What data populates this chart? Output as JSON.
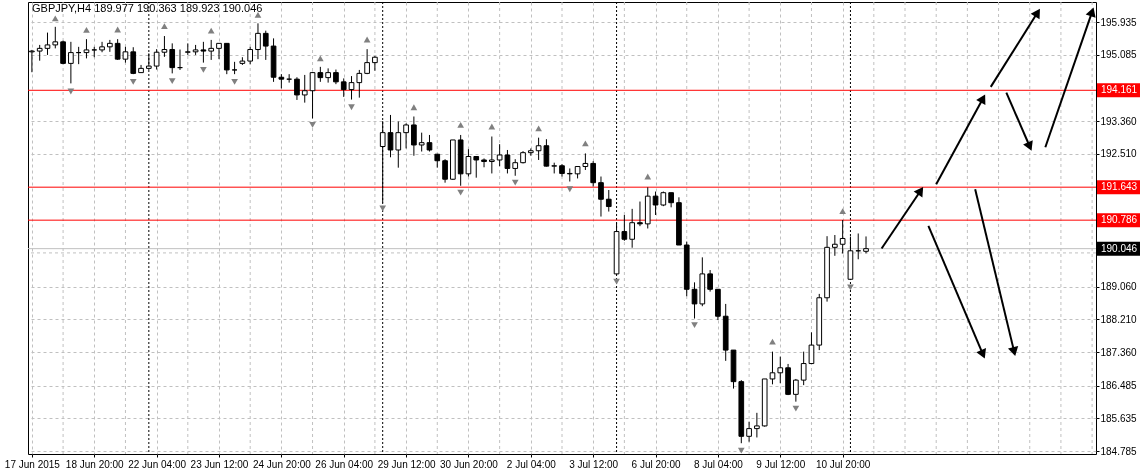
{
  "chart_data": {
    "type": "candlestick",
    "title": "GBPJPY,H4  189.977 190.363 189.923 190.046",
    "color": "#000000",
    "categories": [
      "17 Jun 2015",
      null,
      null,
      null,
      null,
      null,
      null,
      null,
      "18 Jun 20:00",
      null,
      null,
      null,
      null,
      null,
      null,
      null,
      "22 Jun 04:00",
      null,
      null,
      null,
      null,
      null,
      null,
      null,
      "23 Jun 12:00",
      null,
      null,
      null,
      null,
      null,
      null,
      null,
      "24 Jun 20:00",
      null,
      null,
      null,
      null,
      null,
      null,
      null,
      "26 Jun 04:00",
      null,
      null,
      null,
      null,
      null,
      null,
      null,
      "29 Jun 12:00",
      null,
      null,
      null,
      null,
      null,
      null,
      null,
      "30 Jun 20:00",
      null,
      null,
      null,
      null,
      null,
      null,
      null,
      "2 Jul 04:00",
      null,
      null,
      null,
      null,
      null,
      null,
      null,
      "3 Jul 12:00",
      null,
      null,
      null,
      null,
      null,
      null,
      null,
      "6 Jul 20:00",
      null,
      null,
      null,
      null,
      null,
      null,
      null,
      "8 Jul 04:00",
      null,
      null,
      null,
      null,
      null,
      null,
      null,
      "9 Jul 12:00",
      null,
      null,
      null,
      null,
      null,
      null,
      null,
      "10 Jul 20:00",
      null,
      null,
      null,
      null,
      null,
      null,
      null,
      null,
      null,
      null,
      null,
      null,
      null,
      null,
      null,
      null,
      null,
      null,
      null,
      null,
      null,
      null,
      null,
      null,
      null,
      null,
      null,
      null,
      null,
      null,
      null,
      null
    ],
    "ohlc": [
      [
        195.16,
        195.21,
        194.63,
        195.18
      ],
      [
        195.18,
        195.34,
        194.93,
        195.25
      ],
      [
        195.25,
        195.66,
        195.08,
        195.34
      ],
      [
        195.34,
        195.81,
        195.25,
        195.42
      ],
      [
        195.42,
        195.45,
        194.84,
        194.86
      ],
      [
        194.86,
        195.42,
        194.34,
        195.14
      ],
      [
        195.14,
        195.29,
        194.84,
        195.14
      ],
      [
        195.14,
        195.49,
        194.99,
        195.21
      ],
      [
        195.21,
        195.29,
        195.02,
        195.21
      ],
      [
        195.21,
        195.42,
        195.15,
        195.29
      ],
      [
        195.29,
        195.47,
        195.16,
        195.38
      ],
      [
        195.38,
        195.49,
        194.95,
        194.97
      ],
      [
        194.97,
        195.29,
        194.88,
        195.16
      ],
      [
        195.16,
        195.28,
        194.58,
        194.6
      ],
      [
        194.62,
        194.82,
        194.62,
        194.73
      ],
      [
        194.73,
        195.12,
        194.69,
        194.79
      ],
      [
        194.79,
        195.23,
        194.7,
        195.15
      ],
      [
        195.15,
        195.57,
        195.03,
        195.22
      ],
      [
        195.22,
        195.38,
        194.6,
        194.75
      ],
      [
        194.75,
        195.22,
        194.69,
        194.75
      ],
      [
        195.15,
        195.38,
        195.08,
        195.16
      ],
      [
        195.16,
        195.34,
        195.08,
        195.21
      ],
      [
        195.21,
        195.42,
        194.88,
        195.18
      ],
      [
        195.18,
        195.47,
        194.95,
        195.25
      ],
      [
        195.25,
        195.38,
        194.97,
        195.38
      ],
      [
        195.38,
        195.38,
        194.58,
        194.69
      ],
      [
        194.69,
        194.9,
        194.58,
        194.69
      ],
      [
        194.86,
        195.02,
        194.82,
        194.92
      ],
      [
        194.92,
        195.29,
        194.84,
        195.22
      ],
      [
        195.22,
        195.9,
        194.97,
        195.64
      ],
      [
        195.64,
        195.71,
        194.95,
        195.31
      ],
      [
        195.31,
        195.51,
        194.38,
        194.5
      ],
      [
        194.5,
        194.58,
        194.21,
        194.45
      ],
      [
        194.45,
        194.58,
        194.36,
        194.45
      ],
      [
        194.45,
        194.5,
        193.91,
        194.04
      ],
      [
        194.04,
        194.56,
        193.84,
        194.15
      ],
      [
        194.15,
        194.64,
        193.43,
        194.62
      ],
      [
        194.62,
        194.77,
        194.38,
        194.49
      ],
      [
        194.49,
        194.73,
        194.36,
        194.62
      ],
      [
        194.62,
        194.7,
        194.32,
        194.38
      ],
      [
        194.38,
        194.47,
        193.99,
        194.18
      ],
      [
        194.18,
        194.53,
        193.92,
        194.36
      ],
      [
        194.36,
        194.69,
        193.97,
        194.6
      ],
      [
        194.6,
        195.23,
        194.58,
        194.88
      ],
      [
        194.88,
        195.05,
        194.67,
        195.02
      ],
      [
        192.7,
        193.36,
        191.24,
        193.06
      ],
      [
        193.06,
        193.52,
        192.42,
        192.61
      ],
      [
        192.61,
        193.35,
        192.15,
        193.06
      ],
      [
        193.06,
        193.3,
        192.65,
        193.26
      ],
      [
        193.26,
        193.48,
        192.46,
        192.74
      ],
      [
        192.74,
        193.06,
        192.57,
        192.8
      ],
      [
        192.8,
        193.0,
        192.57,
        192.61
      ],
      [
        192.5,
        192.51,
        192.15,
        192.33
      ],
      [
        192.33,
        192.37,
        191.76,
        191.85
      ],
      [
        191.85,
        192.87,
        191.83,
        192.87
      ],
      [
        192.87,
        193.0,
        191.68,
        191.99
      ],
      [
        191.99,
        192.63,
        191.92,
        192.44
      ],
      [
        192.44,
        192.45,
        191.89,
        192.35
      ],
      [
        192.35,
        192.39,
        192.16,
        192.31
      ],
      [
        192.31,
        192.96,
        192.0,
        192.35
      ],
      [
        192.35,
        192.76,
        192.19,
        192.48
      ],
      [
        192.48,
        192.61,
        192.0,
        192.13
      ],
      [
        192.13,
        192.37,
        191.94,
        192.28
      ],
      [
        192.28,
        192.58,
        192.26,
        192.54
      ],
      [
        192.54,
        192.65,
        192.46,
        192.59
      ],
      [
        192.59,
        192.93,
        192.35,
        192.72
      ],
      [
        192.72,
        192.89,
        192.18,
        192.19
      ],
      [
        192.19,
        192.28,
        192.0,
        192.2
      ],
      [
        192.2,
        192.24,
        191.92,
        192.0
      ],
      [
        192.0,
        192.13,
        191.79,
        191.99
      ],
      [
        191.99,
        192.19,
        191.87,
        192.18
      ],
      [
        192.18,
        192.52,
        192.09,
        192.26
      ],
      [
        192.26,
        192.32,
        191.66,
        191.76
      ],
      [
        191.76,
        191.92,
        190.88,
        191.33
      ],
      [
        191.33,
        191.57,
        191.01,
        191.14
      ],
      [
        189.39,
        190.72,
        189.36,
        190.49
      ],
      [
        190.49,
        190.92,
        190.25,
        190.29
      ],
      [
        190.29,
        191.08,
        190.07,
        190.72
      ],
      [
        190.72,
        191.27,
        190.63,
        190.69
      ],
      [
        190.69,
        191.64,
        190.57,
        191.41
      ],
      [
        191.41,
        191.53,
        190.92,
        191.18
      ],
      [
        191.18,
        191.53,
        191.15,
        191.5
      ],
      [
        191.5,
        191.5,
        191.12,
        191.24
      ],
      [
        191.24,
        191.38,
        190.14,
        190.14
      ],
      [
        190.14,
        190.23,
        188.81,
        188.99
      ],
      [
        188.99,
        189.17,
        188.23,
        188.61
      ],
      [
        188.61,
        189.82,
        188.55,
        189.39
      ],
      [
        189.39,
        189.49,
        188.93,
        188.99
      ],
      [
        188.99,
        188.99,
        188.19,
        188.29
      ],
      [
        188.29,
        188.61,
        187.13,
        187.41
      ],
      [
        187.41,
        187.41,
        186.41,
        186.59
      ],
      [
        186.59,
        186.63,
        184.99,
        185.17
      ],
      [
        185.17,
        185.55,
        185.03,
        185.37
      ],
      [
        185.37,
        185.78,
        185.14,
        185.44
      ],
      [
        185.44,
        186.66,
        185.42,
        186.66
      ],
      [
        186.66,
        187.37,
        186.52,
        186.82
      ],
      [
        186.82,
        187.24,
        186.55,
        186.95
      ],
      [
        186.95,
        187.05,
        186.24,
        186.26
      ],
      [
        186.26,
        186.66,
        186.07,
        186.63
      ],
      [
        186.63,
        187.37,
        186.5,
        187.06
      ],
      [
        187.06,
        187.87,
        187.05,
        187.54
      ],
      [
        187.54,
        188.87,
        187.41,
        188.77
      ],
      [
        188.77,
        190.37,
        188.67,
        190.08
      ],
      [
        190.08,
        190.4,
        189.86,
        190.16
      ],
      [
        190.16,
        190.79,
        189.92,
        190.31
      ],
      [
        189.25,
        190.36,
        189.23,
        189.99
      ],
      [
        189.99,
        190.44,
        189.77,
        189.99
      ],
      [
        189.977,
        190.363,
        189.923,
        190.046
      ],
      null,
      null,
      null,
      null,
      null,
      null,
      null,
      null,
      null,
      null,
      null,
      null,
      null,
      null,
      null,
      null,
      null,
      null,
      null,
      null,
      null,
      null,
      null,
      null,
      null,
      null,
      null,
      null,
      null
    ],
    "series": [
      {
        "type": "scatter",
        "color": "#808080",
        "marker": "triangle",
        "values": [
          null,
          null,
          null,
          196.03,
          null,
          null,
          null,
          195.73,
          null,
          null,
          null,
          195.74,
          null,
          null,
          null,
          null,
          null,
          195.83,
          null,
          null,
          null,
          null,
          null,
          195.71,
          null,
          null,
          null,
          null,
          null,
          196.12,
          null,
          null,
          null,
          null,
          null,
          null,
          null,
          194.99,
          null,
          null,
          null,
          null,
          null,
          195.48,
          null,
          null,
          null,
          null,
          null,
          193.72,
          null,
          null,
          null,
          null,
          null,
          193.26,
          null,
          null,
          null,
          193.22,
          null,
          null,
          null,
          null,
          null,
          193.17,
          null,
          null,
          null,
          null,
          null,
          192.78,
          null,
          null,
          null,
          null,
          null,
          null,
          null,
          191.92,
          null,
          null,
          null,
          null,
          null,
          null,
          null,
          null,
          null,
          null,
          null,
          null,
          null,
          null,
          null,
          187.63,
          null,
          null,
          null,
          null,
          null,
          null,
          null,
          null,
          191.02,
          null,
          null,
          null,
          null,
          null,
          null,
          null,
          null,
          null,
          null,
          null,
          null,
          null,
          null,
          null,
          null,
          null,
          null,
          null,
          null,
          null,
          null,
          null,
          null,
          null,
          null,
          null,
          null,
          null,
          null,
          null,
          null
        ]
      },
      {
        "type": "scatter",
        "color": "#808080",
        "marker": "triangle",
        "values": [
          null,
          null,
          null,
          null,
          null,
          194.13,
          null,
          null,
          null,
          null,
          null,
          null,
          null,
          194.38,
          null,
          null,
          null,
          null,
          194.4,
          null,
          null,
          null,
          194.69,
          null,
          null,
          null,
          194.38,
          null,
          null,
          null,
          null,
          null,
          null,
          null,
          null,
          null,
          193.26,
          null,
          null,
          null,
          null,
          193.72,
          null,
          null,
          null,
          191.09,
          null,
          null,
          null,
          null,
          null,
          null,
          null,
          null,
          null,
          191.5,
          null,
          null,
          null,
          null,
          null,
          null,
          191.76,
          null,
          null,
          null,
          null,
          null,
          null,
          191.59,
          null,
          null,
          null,
          null,
          null,
          189.19,
          null,
          null,
          null,
          null,
          null,
          null,
          null,
          null,
          null,
          188.06,
          null,
          null,
          null,
          null,
          null,
          184.8,
          null,
          null,
          null,
          null,
          null,
          null,
          185.89,
          null,
          null,
          null,
          null,
          null,
          null,
          189.04,
          null,
          null,
          null,
          null,
          null,
          null,
          null,
          null,
          null,
          null,
          null,
          null,
          null,
          null,
          null,
          null,
          null,
          null,
          null,
          null,
          null,
          null,
          null,
          null,
          null,
          null,
          null,
          null,
          null,
          null,
          null
        ]
      },
      {
        "type": "line",
        "color": "#000000",
        "values": [
          null,
          null,
          null,
          null,
          null,
          null,
          null,
          null,
          null,
          null,
          null,
          null,
          null,
          null,
          null,
          null,
          null,
          null,
          null,
          null,
          null,
          null,
          null,
          null,
          null,
          null,
          null,
          null,
          null,
          null,
          null,
          null,
          null,
          null,
          null,
          null,
          null,
          null,
          null,
          null,
          null,
          null,
          null,
          null,
          null,
          null,
          null,
          null,
          null,
          null,
          null,
          null,
          null,
          null,
          null,
          null,
          null,
          null,
          null,
          null,
          null,
          null,
          null,
          null,
          null,
          null,
          null,
          null,
          null,
          null,
          null,
          null,
          null,
          null,
          null,
          null,
          null,
          null,
          null,
          null,
          null,
          null,
          null,
          null,
          null,
          null,
          null,
          null,
          null,
          null,
          null,
          null,
          null,
          null,
          null,
          null,
          null,
          null,
          null,
          null,
          null,
          null,
          null,
          null,
          null,
          null,
          null,
          null,
          null,
          190.05,
          null,
          null,
          null,
          null,
          191.55,
          null,
          null,
          null,
          null,
          null,
          null,
          null,
          null,
          null,
          null,
          null,
          null,
          null,
          null,
          null,
          null,
          null,
          null,
          null,
          null,
          null,
          null
        ]
      },
      {
        "type": "line",
        "color": "#000000",
        "values": [
          null,
          null,
          null,
          null,
          null,
          null,
          null,
          null,
          null,
          null,
          null,
          null,
          null,
          null,
          null,
          null,
          null,
          null,
          null,
          null,
          null,
          null,
          null,
          null,
          null,
          null,
          null,
          null,
          null,
          null,
          null,
          null,
          null,
          null,
          null,
          null,
          null,
          null,
          null,
          null,
          null,
          null,
          null,
          null,
          null,
          null,
          null,
          null,
          null,
          null,
          null,
          null,
          null,
          null,
          null,
          null,
          null,
          null,
          null,
          null,
          null,
          null,
          null,
          null,
          null,
          null,
          null,
          null,
          null,
          null,
          null,
          null,
          null,
          null,
          null,
          null,
          null,
          null,
          null,
          null,
          null,
          null,
          null,
          null,
          null,
          null,
          null,
          null,
          null,
          null,
          null,
          null,
          null,
          null,
          null,
          null,
          null,
          null,
          null,
          null,
          null,
          null,
          null,
          null,
          null,
          null,
          null,
          null,
          null,
          null,
          null,
          null,
          null,
          null,
          null,
          null,
          191.72,
          null,
          null,
          null,
          null,
          null,
          193.95,
          null,
          null,
          null,
          null,
          null,
          null,
          null,
          null,
          null,
          null,
          null,
          null,
          null,
          null
        ]
      },
      {
        "type": "line",
        "color": "#000000",
        "values": [
          null,
          null,
          null,
          null,
          null,
          null,
          null,
          null,
          null,
          null,
          null,
          null,
          null,
          null,
          null,
          null,
          null,
          null,
          null,
          null,
          null,
          null,
          null,
          null,
          null,
          null,
          null,
          null,
          null,
          null,
          null,
          null,
          null,
          null,
          null,
          null,
          null,
          null,
          null,
          null,
          null,
          null,
          null,
          null,
          null,
          null,
          null,
          null,
          null,
          null,
          null,
          null,
          null,
          null,
          null,
          null,
          null,
          null,
          null,
          null,
          null,
          null,
          null,
          null,
          null,
          null,
          null,
          null,
          null,
          null,
          null,
          null,
          null,
          null,
          null,
          null,
          null,
          null,
          null,
          null,
          null,
          null,
          null,
          null,
          null,
          null,
          null,
          null,
          null,
          null,
          null,
          null,
          null,
          null,
          null,
          null,
          null,
          null,
          null,
          null,
          null,
          null,
          null,
          null,
          null,
          null,
          null,
          null,
          null,
          null,
          null,
          null,
          null,
          null,
          null,
          null,
          null,
          null,
          null,
          null,
          null,
          null,
          null,
          194.25,
          null,
          null,
          null,
          null,
          null,
          196.18,
          null,
          null,
          null,
          null,
          null,
          null,
          null
        ]
      },
      {
        "type": "line",
        "color": "#000000",
        "values": [
          null,
          null,
          null,
          null,
          null,
          null,
          null,
          null,
          null,
          null,
          null,
          null,
          null,
          null,
          null,
          null,
          null,
          null,
          null,
          null,
          null,
          null,
          null,
          null,
          null,
          null,
          null,
          null,
          null,
          null,
          null,
          null,
          null,
          null,
          null,
          null,
          null,
          null,
          null,
          null,
          null,
          null,
          null,
          null,
          null,
          null,
          null,
          null,
          null,
          null,
          null,
          null,
          null,
          null,
          null,
          null,
          null,
          null,
          null,
          null,
          null,
          null,
          null,
          null,
          null,
          null,
          null,
          null,
          null,
          null,
          null,
          null,
          null,
          null,
          null,
          null,
          null,
          null,
          null,
          null,
          null,
          null,
          null,
          null,
          null,
          null,
          null,
          null,
          null,
          null,
          null,
          null,
          null,
          null,
          null,
          null,
          null,
          null,
          null,
          null,
          null,
          null,
          null,
          null,
          null,
          null,
          null,
          null,
          null,
          null,
          null,
          null,
          null,
          null,
          null,
          null,
          null,
          null,
          null,
          null,
          null,
          null,
          null,
          null,
          null,
          194.1,
          null,
          null,
          192.7,
          null,
          null,
          null,
          null,
          null,
          null,
          null,
          null
        ]
      },
      {
        "type": "line",
        "color": "#000000",
        "values": [
          null,
          null,
          null,
          null,
          null,
          null,
          null,
          null,
          null,
          null,
          null,
          null,
          null,
          null,
          null,
          null,
          null,
          null,
          null,
          null,
          null,
          null,
          null,
          null,
          null,
          null,
          null,
          null,
          null,
          null,
          null,
          null,
          null,
          null,
          null,
          null,
          null,
          null,
          null,
          null,
          null,
          null,
          null,
          null,
          null,
          null,
          null,
          null,
          null,
          null,
          null,
          null,
          null,
          null,
          null,
          null,
          null,
          null,
          null,
          null,
          null,
          null,
          null,
          null,
          null,
          null,
          null,
          null,
          null,
          null,
          null,
          null,
          null,
          null,
          null,
          null,
          null,
          null,
          null,
          null,
          null,
          null,
          null,
          null,
          null,
          null,
          null,
          null,
          null,
          null,
          null,
          null,
          null,
          null,
          null,
          null,
          null,
          null,
          null,
          null,
          null,
          null,
          null,
          null,
          null,
          null,
          null,
          null,
          null,
          null,
          null,
          null,
          null,
          null,
          null,
          null,
          null,
          null,
          null,
          null,
          null,
          null,
          null,
          null,
          null,
          null,
          null,
          null,
          null,
          null,
          192.68,
          null,
          null,
          null,
          null,
          null,
          196.2
        ]
      },
      {
        "type": "line",
        "color": "#000000",
        "values": [
          null,
          null,
          null,
          null,
          null,
          null,
          null,
          null,
          null,
          null,
          null,
          null,
          null,
          null,
          null,
          null,
          null,
          null,
          null,
          null,
          null,
          null,
          null,
          null,
          null,
          null,
          null,
          null,
          null,
          null,
          null,
          null,
          null,
          null,
          null,
          null,
          null,
          null,
          null,
          null,
          null,
          null,
          null,
          null,
          null,
          null,
          null,
          null,
          null,
          null,
          null,
          null,
          null,
          null,
          null,
          null,
          null,
          null,
          null,
          null,
          null,
          null,
          null,
          null,
          null,
          null,
          null,
          null,
          null,
          null,
          null,
          null,
          null,
          null,
          null,
          null,
          null,
          null,
          null,
          null,
          null,
          null,
          null,
          null,
          null,
          null,
          null,
          null,
          null,
          null,
          null,
          null,
          null,
          null,
          null,
          null,
          null,
          null,
          null,
          null,
          null,
          null,
          null,
          null,
          null,
          null,
          null,
          null,
          null,
          null,
          null,
          null,
          null,
          null,
          null,
          190.64,
          null,
          null,
          null,
          null,
          null,
          null,
          187.3,
          null,
          null,
          null,
          null,
          null,
          null,
          null,
          null,
          null,
          null,
          null,
          null,
          null,
          null
        ]
      },
      {
        "type": "line",
        "color": "#000000",
        "values": [
          null,
          null,
          null,
          null,
          null,
          null,
          null,
          null,
          null,
          null,
          null,
          null,
          null,
          null,
          null,
          null,
          null,
          null,
          null,
          null,
          null,
          null,
          null,
          null,
          null,
          null,
          null,
          null,
          null,
          null,
          null,
          null,
          null,
          null,
          null,
          null,
          null,
          null,
          null,
          null,
          null,
          null,
          null,
          null,
          null,
          null,
          null,
          null,
          null,
          null,
          null,
          null,
          null,
          null,
          null,
          null,
          null,
          null,
          null,
          null,
          null,
          null,
          null,
          null,
          null,
          null,
          null,
          null,
          null,
          null,
          null,
          null,
          null,
          null,
          null,
          null,
          null,
          null,
          null,
          null,
          null,
          null,
          null,
          null,
          null,
          null,
          null,
          null,
          null,
          null,
          null,
          null,
          null,
          null,
          null,
          null,
          null,
          null,
          null,
          null,
          null,
          null,
          null,
          null,
          null,
          null,
          null,
          null,
          null,
          null,
          null,
          null,
          null,
          null,
          null,
          null,
          null,
          null,
          null,
          null,
          null,
          191.59,
          null,
          null,
          null,
          null,
          187.37,
          null,
          null,
          null,
          null,
          null,
          null,
          null,
          null,
          null,
          null
        ]
      }
    ],
    "ylim": [
      184.71,
      196.455
    ],
    "yticks": [
      195.935,
      195.085,
      {
        "value": 193.36,
        "label": "193.360"
      },
      {
        "value": 192.51,
        "label": "192.510"
      },
      {
        "value": 189.935,
        "label": null
      },
      {
        "value": 189.06,
        "label": "189.060"
      },
      {
        "value": 188.21,
        "label": "188.210"
      },
      {
        "value": 187.36,
        "label": "187.360"
      },
      186.485,
      185.635,
      184.785
    ],
    "grid": true,
    "ref_lines": [
      {
        "axis": "y",
        "value": 194.161,
        "label": "194.161",
        "color": "#ff0000"
      },
      {
        "axis": "y",
        "value": 191.643,
        "label": "191.643",
        "color": "#ff0000"
      },
      {
        "axis": "y",
        "value": 190.786,
        "label": "190.786",
        "color": "#ff0000"
      },
      {
        "axis": "y",
        "value": 190.046,
        "label": "190.046",
        "color": "#c0c0c0"
      }
    ]
  }
}
